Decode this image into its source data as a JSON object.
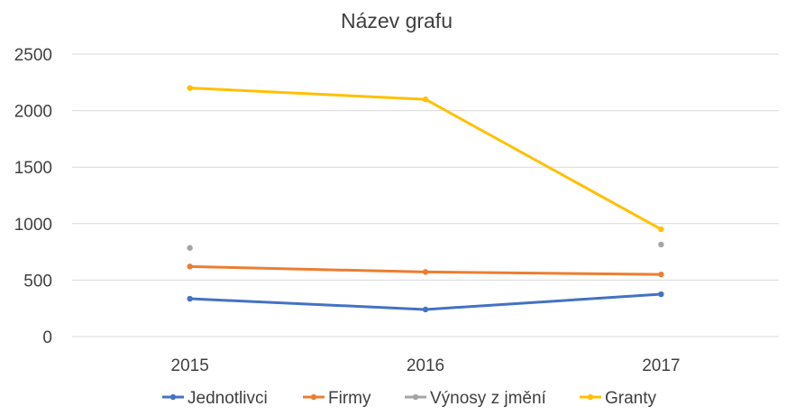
{
  "chart_data": {
    "type": "line",
    "title": "Název grafu",
    "categories": [
      "2015",
      "2016",
      "2017"
    ],
    "y_ticks": [
      "0",
      "500",
      "1000",
      "1500",
      "2000",
      "2500"
    ],
    "ylim": [
      0,
      2500
    ],
    "grid": true,
    "legend_position": "bottom",
    "series": [
      {
        "name": "Jednotlivci",
        "color": "#4472c4",
        "values": [
          335,
          240,
          375
        ],
        "line": true
      },
      {
        "name": "Firmy",
        "color": "#ed7d31",
        "values": [
          620,
          572,
          550
        ],
        "line": true
      },
      {
        "name": "Výnosy z jmění",
        "color": "#a5a5a5",
        "values": [
          785,
          null,
          815
        ],
        "line": true
      },
      {
        "name": "Granty",
        "color": "#ffc000",
        "values": [
          2200,
          2100,
          950
        ],
        "line": true
      }
    ]
  }
}
